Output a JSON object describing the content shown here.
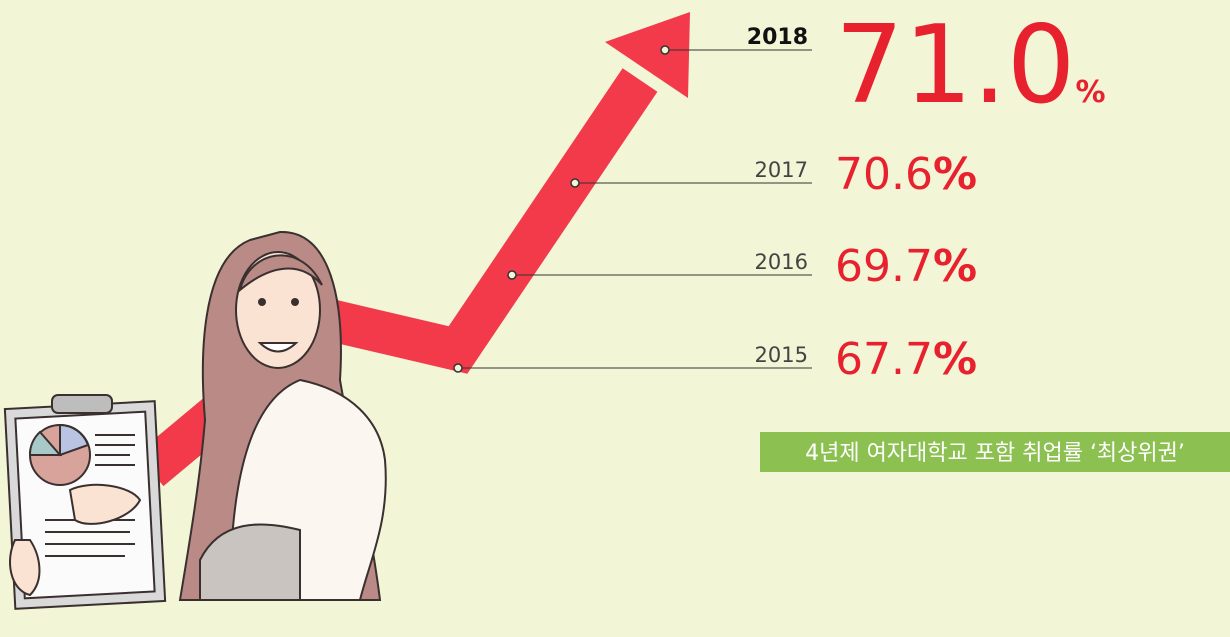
{
  "entries": [
    {
      "year": "2018",
      "value": "71.0",
      "unit": "%"
    },
    {
      "year": "2017",
      "value": "70.6",
      "unit": "%"
    },
    {
      "year": "2016",
      "value": "69.7",
      "unit": "%"
    },
    {
      "year": "2015",
      "value": "67.7",
      "unit": "%"
    }
  ],
  "badge": "4년제 여자대학교 포함 취업률 ‘최상위권’"
}
